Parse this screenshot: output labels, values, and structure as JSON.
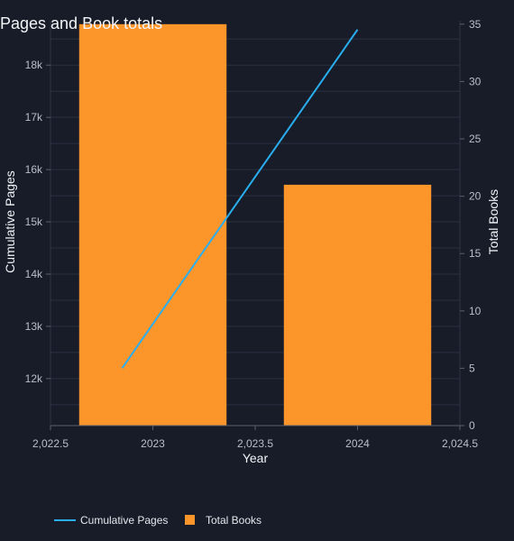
{
  "chart_data": {
    "type": "bar",
    "title": "Pages and Book totals",
    "xlabel": "Year",
    "ylabel": "Cumulative Pages",
    "y2label": "Total Books",
    "x": [
      2023,
      2024
    ],
    "xlim": [
      2022.5,
      2024.5
    ],
    "x_ticks": [
      2022.5,
      2023,
      2023.5,
      2024,
      2024.5
    ],
    "x_tick_labels": [
      "2,022.5",
      "2023",
      "2,023.5",
      "2024",
      "2,024.5"
    ],
    "ylim": [
      11100,
      18850
    ],
    "y_ticks": [
      12000,
      13000,
      14000,
      15000,
      16000,
      17000,
      18000
    ],
    "y_tick_labels": [
      "12k",
      "13k",
      "14k",
      "15k",
      "16k",
      "17k",
      "18k"
    ],
    "y2lim": [
      0,
      35.3
    ],
    "y2_ticks": [
      0,
      5,
      10,
      15,
      20,
      25,
      30,
      35
    ],
    "y2_tick_labels": [
      "0",
      "5",
      "10",
      "15",
      "20",
      "25",
      "30",
      "35"
    ],
    "grid": true,
    "legend_position": "bottom-left",
    "series": [
      {
        "name": "Cumulative Pages",
        "kind": "line",
        "axis": "left",
        "x": [
          2022.85,
          2024
        ],
        "values": [
          12200,
          18680
        ],
        "color": "#29aef0"
      },
      {
        "name": "Total Books",
        "kind": "bar",
        "axis": "right",
        "x": [
          2023,
          2024
        ],
        "values": [
          35,
          21
        ],
        "bar_width": 0.72,
        "color": "#fd962a"
      }
    ]
  }
}
